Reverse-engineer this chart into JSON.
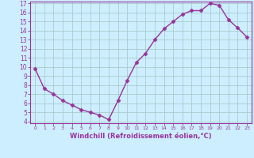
{
  "x": [
    0,
    1,
    2,
    3,
    4,
    5,
    6,
    7,
    8,
    9,
    10,
    11,
    12,
    13,
    14,
    15,
    16,
    17,
    18,
    19,
    20,
    21,
    22,
    23
  ],
  "y": [
    9.8,
    7.6,
    7.0,
    6.3,
    5.8,
    5.3,
    5.0,
    4.7,
    4.2,
    6.3,
    8.5,
    10.5,
    11.5,
    13.0,
    14.2,
    15.0,
    15.8,
    16.2,
    16.2,
    17.0,
    16.8,
    15.2,
    14.3,
    13.3
  ],
  "line_color": "#993399",
  "marker": "D",
  "markersize": 2.5,
  "linewidth": 1.0,
  "bg_color": "#cceeff",
  "grid_color": "#aacccc",
  "xlabel": "Windchill (Refroidissement éolien,°C)",
  "xlim": [
    -0.5,
    23.5
  ],
  "ylim": [
    3.8,
    17.2
  ],
  "yticks": [
    4,
    5,
    6,
    7,
    8,
    9,
    10,
    11,
    12,
    13,
    14,
    15,
    16,
    17
  ],
  "xticks": [
    0,
    1,
    2,
    3,
    4,
    5,
    6,
    7,
    8,
    9,
    10,
    11,
    12,
    13,
    14,
    15,
    16,
    17,
    18,
    19,
    20,
    21,
    22,
    23
  ],
  "tick_color": "#993399",
  "label_color": "#993399",
  "spine_color": "#993399",
  "xtick_fontsize": 4.5,
  "ytick_fontsize": 5.5,
  "xlabel_fontsize": 6.0
}
